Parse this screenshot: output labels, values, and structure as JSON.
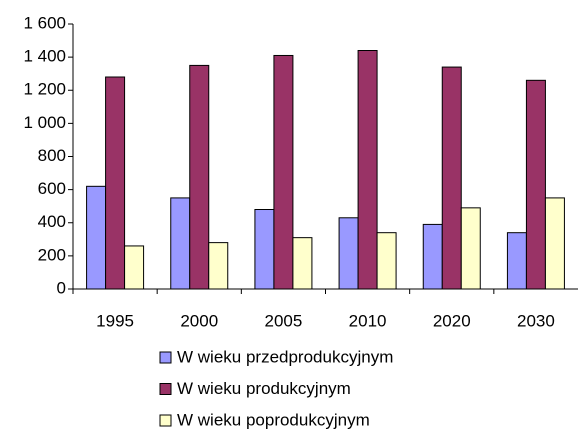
{
  "chart_data": {
    "type": "bar",
    "categories": [
      "1995",
      "2000",
      "2005",
      "2010",
      "2020",
      "2030"
    ],
    "series": [
      {
        "name": "W wieku przedprodukcyjnym",
        "color": "#9999ff",
        "values": [
          620,
          550,
          480,
          430,
          390,
          340
        ]
      },
      {
        "name": "W wieku produkcyjnym",
        "color": "#993366",
        "values": [
          1280,
          1350,
          1410,
          1440,
          1340,
          1260
        ]
      },
      {
        "name": "W wieku poprodukcyjnym",
        "color": "#ffffcc",
        "values": [
          260,
          280,
          310,
          340,
          490,
          550
        ]
      }
    ],
    "ylim": [
      0,
      1600
    ],
    "yticks": [
      0,
      200,
      400,
      600,
      800,
      {
        "value": 1000,
        "label": "1 000"
      },
      {
        "value": 1200,
        "label": "1 200"
      },
      {
        "value": 1400,
        "label": "1 400"
      },
      {
        "value": 1600,
        "label": "1 600"
      }
    ],
    "grid": false,
    "legend": "bottom"
  }
}
